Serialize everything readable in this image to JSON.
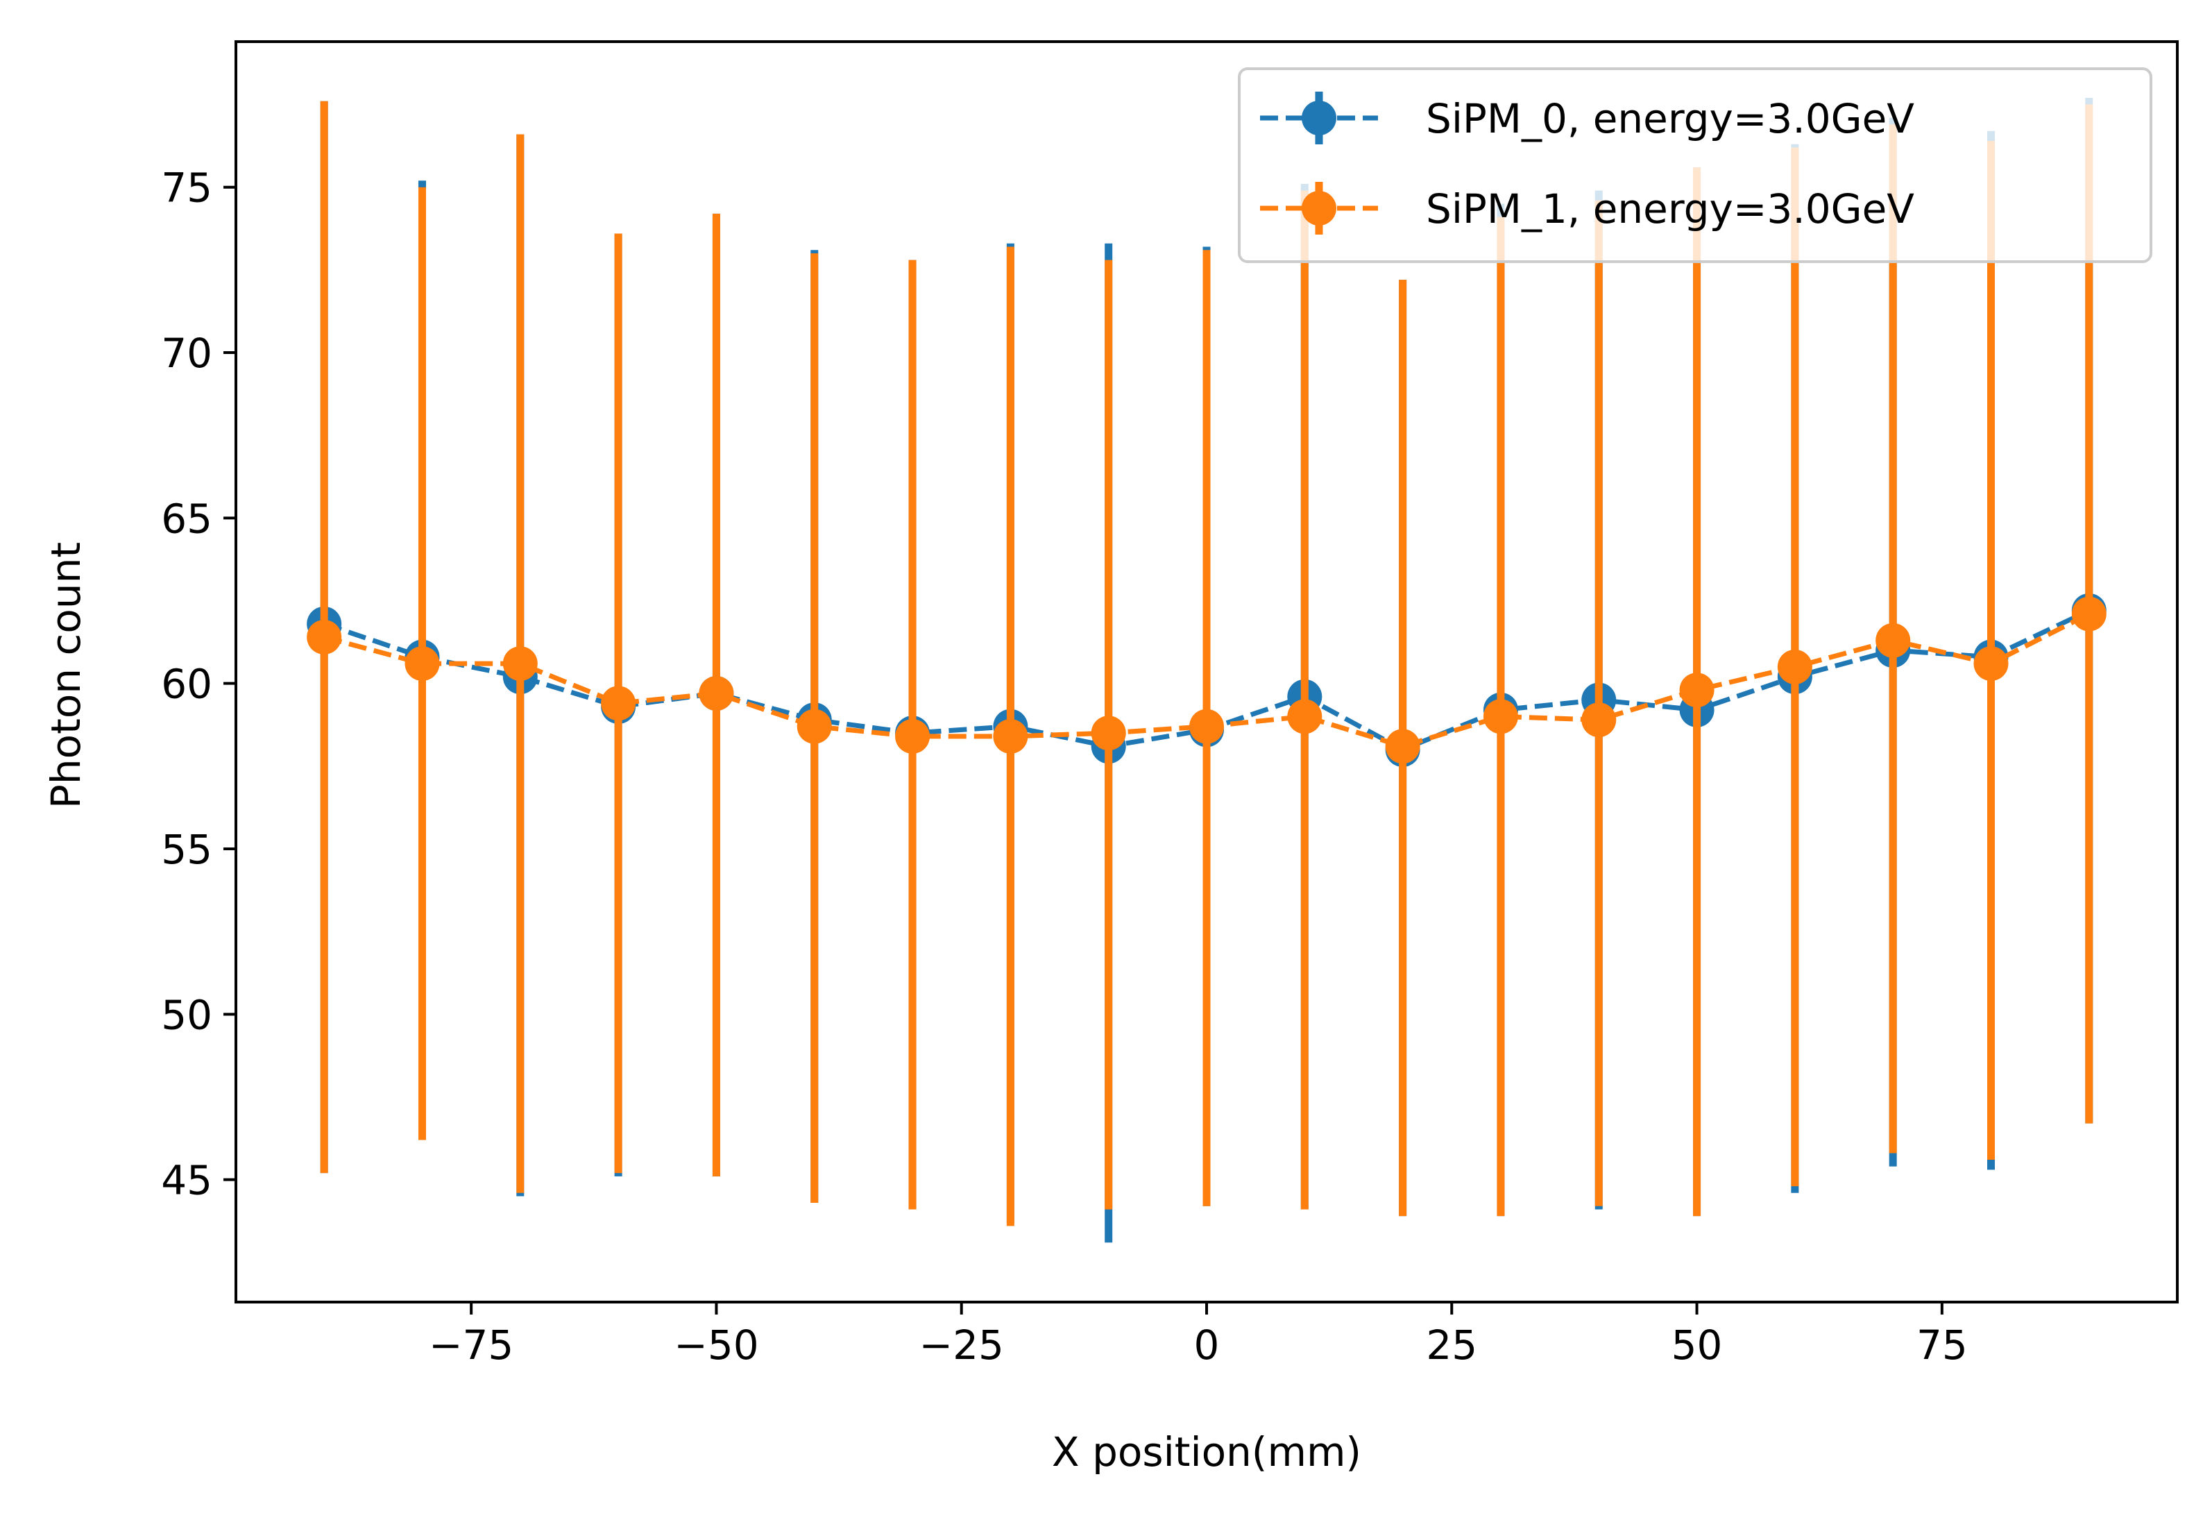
{
  "chart_data": {
    "type": "line",
    "title": "",
    "xlabel": "X position(mm)",
    "ylabel": "Photon count",
    "xlim": [
      -99,
      99
    ],
    "ylim": [
      41.3,
      79.4
    ],
    "xticks": [
      -75,
      -50,
      -25,
      0,
      25,
      50,
      75
    ],
    "xtick_labels": [
      "−75",
      "−50",
      "−25",
      "0",
      "25",
      "50",
      "75"
    ],
    "yticks": [
      45,
      50,
      55,
      60,
      65,
      70,
      75
    ],
    "ytick_labels": [
      "45",
      "50",
      "55",
      "60",
      "65",
      "70",
      "75"
    ],
    "grid": false,
    "legend_position": "top-right",
    "x": [
      -90,
      -80,
      -70,
      -60,
      -50,
      -40,
      -30,
      -20,
      -10,
      0,
      10,
      20,
      30,
      40,
      50,
      60,
      70,
      80,
      90
    ],
    "series": [
      {
        "name": "SiPM_0, energy=3.0GeV",
        "color": "#1f77b4",
        "values": [
          61.8,
          60.8,
          60.2,
          59.3,
          59.7,
          58.9,
          58.5,
          58.7,
          58.1,
          58.6,
          59.6,
          58.0,
          59.2,
          59.5,
          59.2,
          60.2,
          61.0,
          60.8,
          62.2
        ],
        "err_low": [
          45.2,
          46.2,
          44.5,
          45.1,
          45.1,
          44.3,
          44.1,
          43.7,
          43.1,
          44.2,
          44.1,
          43.9,
          43.9,
          44.1,
          43.9,
          44.6,
          45.4,
          45.3,
          46.7
        ],
        "err_high": [
          77.6,
          75.2,
          76.6,
          73.6,
          74.2,
          73.1,
          72.8,
          73.3,
          73.3,
          73.2,
          75.1,
          72.2,
          74.5,
          74.9,
          75.6,
          76.3,
          77.1,
          76.7,
          77.7
        ]
      },
      {
        "name": "SiPM_1, energy=3.0GeV",
        "color": "#ff7f0e",
        "values": [
          61.4,
          60.6,
          60.6,
          59.4,
          59.7,
          58.7,
          58.4,
          58.4,
          58.5,
          58.7,
          59.0,
          58.1,
          59.0,
          58.9,
          59.8,
          60.5,
          61.3,
          60.6,
          62.1
        ],
        "err_low": [
          45.2,
          46.2,
          44.6,
          45.2,
          45.1,
          44.3,
          44.1,
          43.6,
          44.1,
          44.2,
          44.1,
          43.9,
          43.9,
          44.2,
          43.9,
          44.8,
          45.8,
          45.6,
          46.7
        ],
        "err_high": [
          77.6,
          75.0,
          76.6,
          73.6,
          74.2,
          73.0,
          72.8,
          73.2,
          72.8,
          73.1,
          74.9,
          72.2,
          74.1,
          74.6,
          75.6,
          76.2,
          76.9,
          76.4,
          77.5
        ]
      }
    ]
  }
}
